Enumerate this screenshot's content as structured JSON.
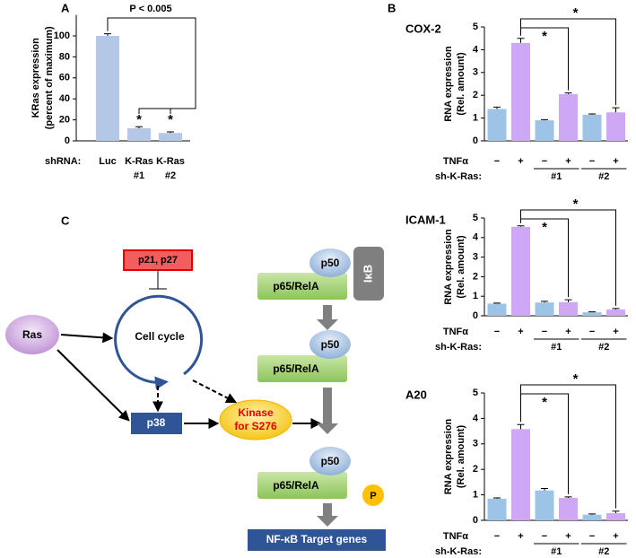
{
  "chart_data": [
    {
      "type": "bar",
      "panel_label": "A",
      "y_label": [
        "KRas expression",
        "(percent of maximum)"
      ],
      "x_label": "shRNA:",
      "categories": [
        [
          "Luc"
        ],
        [
          "K-Ras",
          "#1"
        ],
        [
          "K-Ras",
          "#2"
        ]
      ],
      "values": [
        100,
        12,
        7.5
      ],
      "errors": [
        2,
        1.5,
        1
      ],
      "color": "#b4c7e7",
      "ylim": [
        0,
        120
      ],
      "yticks": [
        0,
        20,
        40,
        60,
        80,
        100
      ],
      "annotations": [
        "P < 0.005",
        "*",
        "*"
      ]
    },
    {
      "type": "bar",
      "panel_label": "B",
      "title": "COX-2",
      "y_label": [
        "RNA expression",
        "(Rel. amount)"
      ],
      "x_label": "TNFα",
      "categories": [
        "−",
        "+",
        "−",
        "+",
        "−",
        "+"
      ],
      "group_label": "sh-K-Ras:",
      "groups": [
        "#1",
        "#2"
      ],
      "values": [
        1.4,
        4.3,
        0.9,
        2.05,
        1.15,
        1.25
      ],
      "errors": [
        0.08,
        0.2,
        0.03,
        0.05,
        0.03,
        0.2
      ],
      "colors": [
        "#9dc3e6",
        "#cfa8f5",
        "#9dc3e6",
        "#cfa8f5",
        "#9dc3e6",
        "#cfa8f5"
      ],
      "ylim": [
        0,
        5
      ],
      "yticks": [
        0,
        1,
        2,
        3,
        4,
        5
      ],
      "annotations": [
        "*",
        "*"
      ]
    },
    {
      "type": "bar",
      "title": "ICAM-1",
      "y_label": [
        "RNA expression",
        "(Rel. amount)"
      ],
      "x_label": "TNFα",
      "categories": [
        "−",
        "+",
        "−",
        "+",
        "−",
        "+"
      ],
      "group_label": "sh-K-Ras:",
      "groups": [
        "#1",
        "#2"
      ],
      "values": [
        0.62,
        4.55,
        0.68,
        0.7,
        0.18,
        0.32
      ],
      "errors": [
        0.03,
        0.05,
        0.06,
        0.12,
        0.02,
        0.05
      ],
      "colors": [
        "#9dc3e6",
        "#cfa8f5",
        "#9dc3e6",
        "#cfa8f5",
        "#9dc3e6",
        "#cfa8f5"
      ],
      "ylim": [
        0,
        5
      ],
      "yticks": [
        0,
        1,
        2,
        3,
        4,
        5
      ],
      "annotations": [
        "*",
        "*"
      ]
    },
    {
      "type": "bar",
      "title": "A20",
      "y_label": [
        "RNA expression",
        "(Rel. amount)"
      ],
      "x_label": "TNFα",
      "categories": [
        "−",
        "+",
        "−",
        "+",
        "−",
        "+"
      ],
      "group_label": "sh-K-Ras:",
      "groups": [
        "#1",
        "#2"
      ],
      "values": [
        0.85,
        3.58,
        1.17,
        0.88,
        0.22,
        0.28
      ],
      "errors": [
        0.03,
        0.18,
        0.08,
        0.04,
        0.03,
        0.08
      ],
      "colors": [
        "#9dc3e6",
        "#cfa8f5",
        "#9dc3e6",
        "#cfa8f5",
        "#9dc3e6",
        "#cfa8f5"
      ],
      "ylim": [
        0,
        5
      ],
      "yticks": [
        0,
        1,
        2,
        3,
        4,
        5
      ],
      "annotations": [
        "*",
        "*"
      ]
    }
  ],
  "diagram": {
    "panel_label": "C",
    "inhibitors": "p21, p27",
    "ras": "Ras",
    "cell_cycle": "Cell cycle",
    "p38": "p38",
    "kinase": [
      "Kinase",
      "for S276"
    ],
    "p50": [
      "p50",
      "p50",
      "p50"
    ],
    "p65": [
      "p65/RelA",
      "p65/RelA",
      "p65/RelA"
    ],
    "ikb": "IκB",
    "phospho": "P",
    "target": "NF-κB Target genes"
  }
}
